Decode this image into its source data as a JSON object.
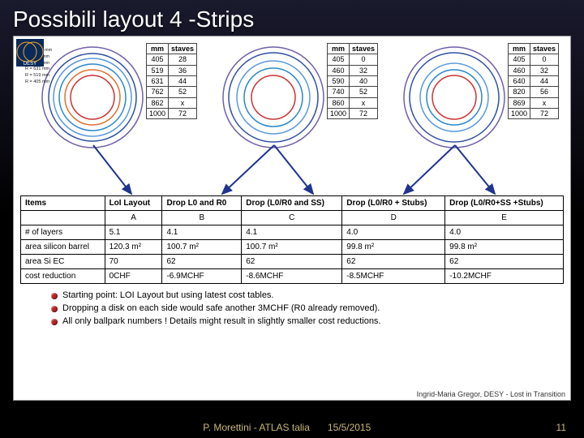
{
  "title": "Possibili layout 4 -Strips",
  "logo_label": "DESY",
  "ring_panels": [
    {
      "rings": [
        {
          "r": 62,
          "stroke": "#7060a8"
        },
        {
          "r": 54,
          "stroke": "#3050a0"
        },
        {
          "r": 48,
          "stroke": "#5a99e0"
        },
        {
          "r": 41,
          "stroke": "#2a88cc"
        },
        {
          "r": 34,
          "stroke": "#e07030"
        },
        {
          "r": 27,
          "stroke": "#cc3333"
        }
      ],
      "labels": [
        "R = 1000 mm",
        "R = 862 mm",
        "R = 762 mm",
        "R = 631 mm",
        "R = 519 mm",
        "R = 405 mm"
      ],
      "table": {
        "head": [
          "mm",
          "staves"
        ],
        "rows": [
          [
            "405",
            "28"
          ],
          [
            "519",
            "36"
          ],
          [
            "631",
            "44"
          ],
          [
            "762",
            "52"
          ],
          [
            "862",
            "x"
          ],
          [
            "1000",
            "72"
          ]
        ]
      },
      "arrows_to": [
        0
      ]
    },
    {
      "rings": [
        {
          "r": 62,
          "stroke": "#7060a8"
        },
        {
          "r": 55,
          "stroke": "#3050a0"
        },
        {
          "r": 45,
          "stroke": "#5a99e0"
        },
        {
          "r": 36,
          "stroke": "#2a88cc"
        },
        {
          "r": 27,
          "stroke": "#cc3333"
        }
      ],
      "labels": [],
      "table": {
        "head": [
          "mm",
          "staves"
        ],
        "rows": [
          [
            "405",
            "0"
          ],
          [
            "460",
            "32"
          ],
          [
            "590",
            "40"
          ],
          [
            "740",
            "52"
          ],
          [
            "860",
            "x"
          ],
          [
            "1000",
            "72"
          ]
        ]
      },
      "arrows_to": [
        1,
        2
      ]
    },
    {
      "rings": [
        {
          "r": 62,
          "stroke": "#7060a8"
        },
        {
          "r": 55,
          "stroke": "#3050a0"
        },
        {
          "r": 42,
          "stroke": "#5a99e0"
        },
        {
          "r": 34,
          "stroke": "#2a88cc"
        },
        {
          "r": 27,
          "stroke": "#cc3333"
        }
      ],
      "labels": [],
      "table": {
        "head": [
          "mm",
          "staves"
        ],
        "rows": [
          [
            "405",
            "0"
          ],
          [
            "460",
            "32"
          ],
          [
            "640",
            "44"
          ],
          [
            "820",
            "56"
          ],
          [
            "869",
            "x"
          ],
          [
            "1000",
            "72"
          ]
        ]
      },
      "arrows_to": [
        3,
        4
      ]
    }
  ],
  "arrow_color": "#20338f",
  "main_table": {
    "header": [
      "Items",
      "LoI Layout",
      "Drop L0 and R0",
      "Drop (L0/R0 and SS)",
      "Drop (L0/R0 + Stubs)",
      "Drop (L0/R0+SS +Stubs)"
    ],
    "letter_row": [
      "",
      "A",
      "B",
      "C",
      "D",
      "E"
    ],
    "rows": [
      [
        "# of layers",
        "5.1",
        "4.1",
        "4.1",
        "4.0",
        "4.0"
      ],
      [
        "area silicon barrel",
        "120.3 m²",
        "100.7 m²",
        "100.7 m²",
        "99.8 m²",
        "99.8 m²"
      ],
      [
        "area Si EC",
        "70",
        "62",
        "62",
        "62",
        "62"
      ],
      [
        "cost reduction",
        "0CHF",
        "-6.9MCHF",
        "-8.6MCHF",
        "-8.5MCHF",
        "-10.2MCHF"
      ]
    ]
  },
  "bullets": [
    "Starting point: LOI Layout but using latest cost tables.",
    "Dropping a disk on each side would safe another 3MCHF (R0 already removed).",
    "All only ballpark numbers ! Details might result in slightly smaller cost reductions."
  ],
  "inner_footer": "Ingrid-Maria Gregor, DESY -   Lost in Transition",
  "page_footer": {
    "author": "P. Morettini - ATLAS talia",
    "date": "15/5/2015",
    "page": "11"
  }
}
